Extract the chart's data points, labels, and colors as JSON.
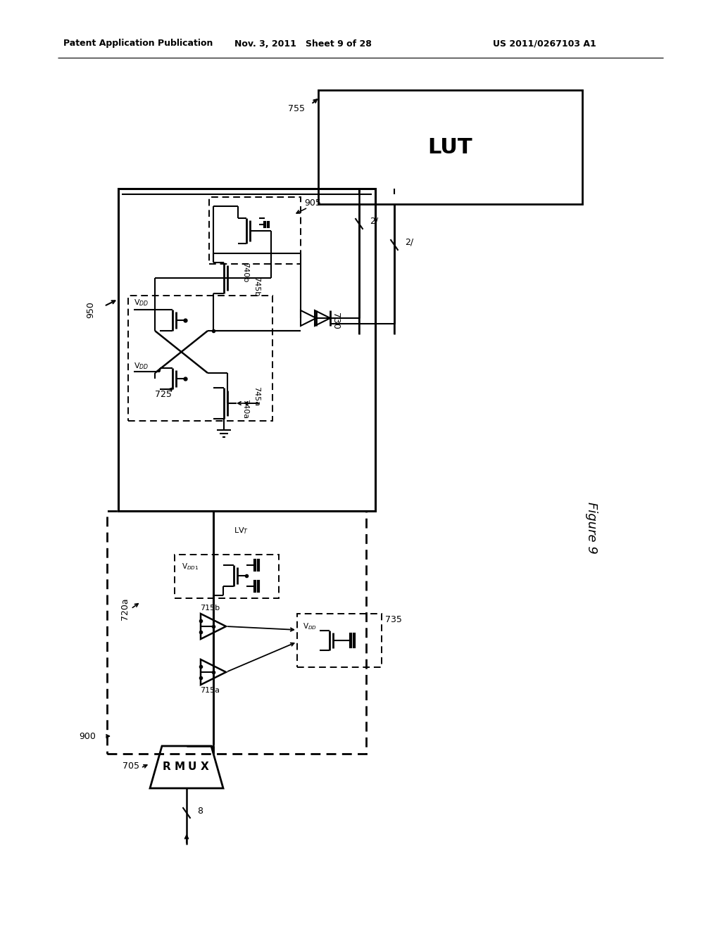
{
  "bg": "#ffffff",
  "header_left": "Patent Application Publication",
  "header_mid": "Nov. 3, 2011   Sheet 9 of 28",
  "header_right": "US 2011/0267103 A1",
  "fig_label": "Figure 9"
}
